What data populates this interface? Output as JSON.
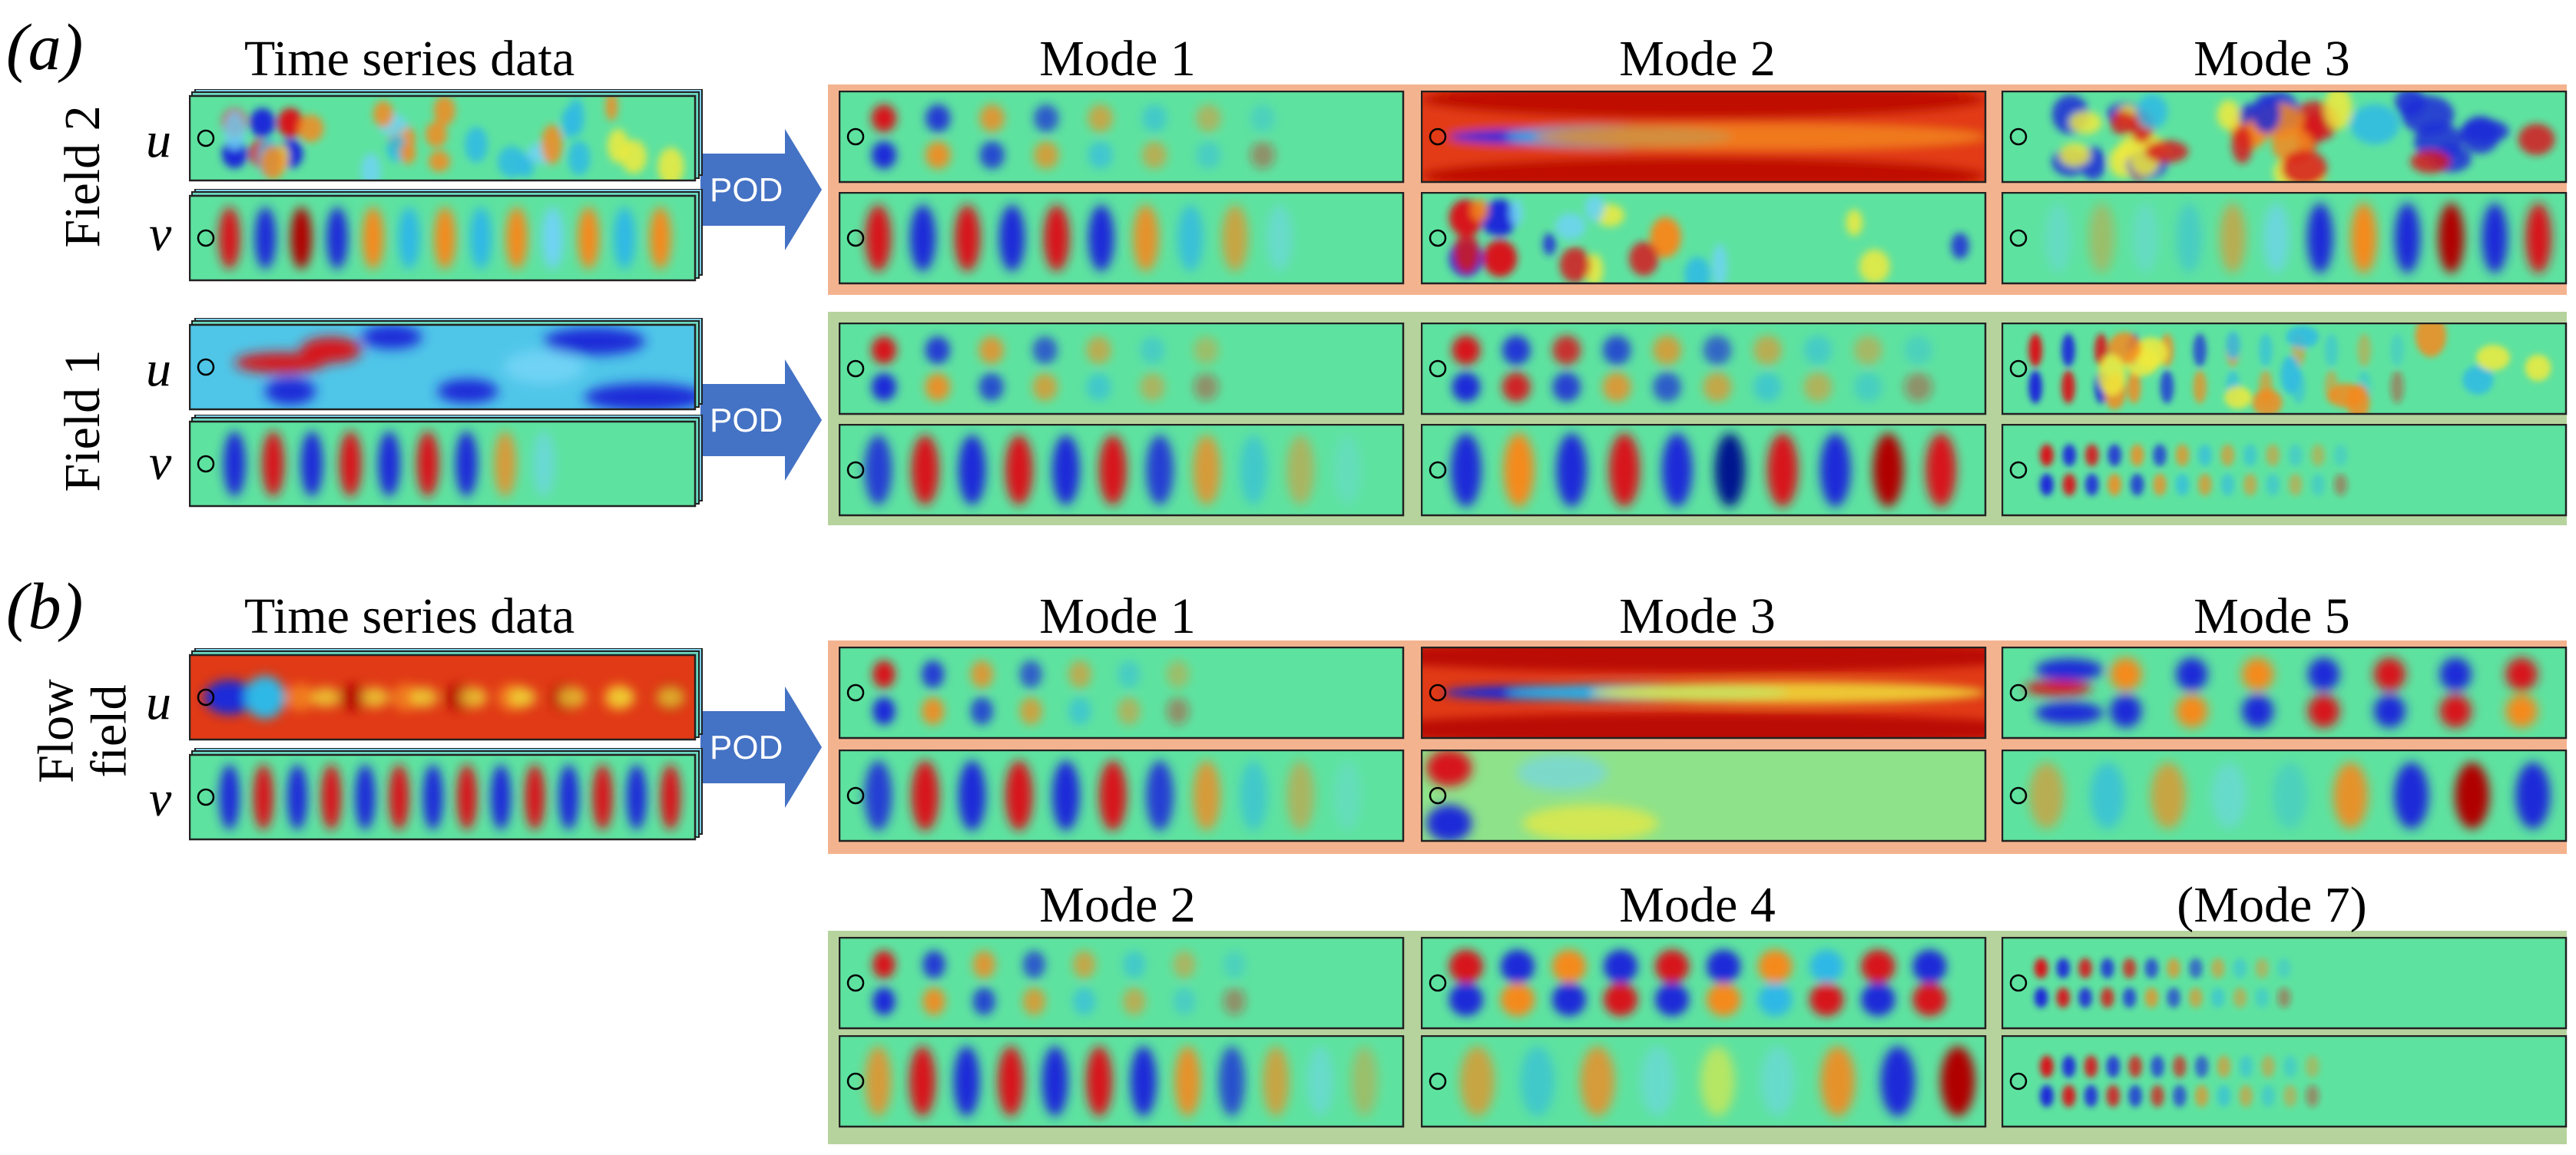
{
  "panel_labels": {
    "a": "(a)",
    "b": "(b)"
  },
  "time_series_title": "Time series data",
  "component_labels": {
    "u": "u",
    "v": "v"
  },
  "row_labels": {
    "field2": "Field 2",
    "field1": "Field 1",
    "flow_line1": "Flow",
    "flow_line2": "field"
  },
  "arrow_label": "POD",
  "mode_titles": {
    "a": [
      "Mode 1",
      "Mode 2",
      "Mode 3"
    ],
    "b_top": [
      "Mode 1",
      "Mode 3",
      "Mode 5"
    ],
    "b_bottom": [
      "Mode 2",
      "Mode 4",
      "(Mode 7)"
    ]
  },
  "colors": {
    "colormap": "jet",
    "orange_highlight": "#f4b38f",
    "green_highlight": "#b6d39e",
    "arrow": "#4472c4",
    "background_field": "#5ee2a0"
  }
}
